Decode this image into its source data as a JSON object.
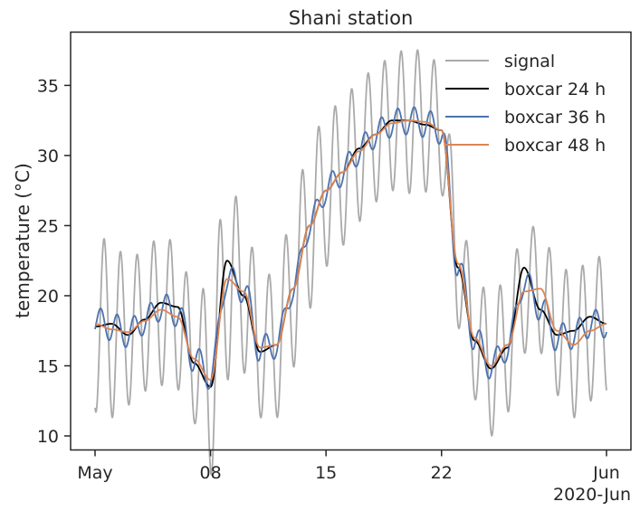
{
  "chart_data": {
    "type": "line",
    "title": "Shani station",
    "xlabel": "",
    "ylabel": "temperature (°C)",
    "x_range": [
      "2020-05-01",
      "2020-06-01"
    ],
    "ylim": [
      9.0,
      38.8
    ],
    "x_ticks": [
      {
        "date": "2020-05-01",
        "label": "May"
      },
      {
        "date": "2020-05-08",
        "label": "08"
      },
      {
        "date": "2020-05-15",
        "label": "15"
      },
      {
        "date": "2020-05-22",
        "label": "22"
      },
      {
        "date": "2020-06-01",
        "label": "Jun"
      }
    ],
    "x_offset_label": "2020-Jun",
    "y_ticks": [
      10,
      15,
      20,
      25,
      30,
      35
    ],
    "legend_position": "top-right",
    "grid": false,
    "x_dates": [
      "2020-05-01",
      "2020-05-02",
      "2020-05-03",
      "2020-05-04",
      "2020-05-05",
      "2020-05-06",
      "2020-05-07",
      "2020-05-08",
      "2020-05-09",
      "2020-05-10",
      "2020-05-11",
      "2020-05-12",
      "2020-05-13",
      "2020-05-14",
      "2020-05-15",
      "2020-05-16",
      "2020-05-17",
      "2020-05-18",
      "2020-05-19",
      "2020-05-20",
      "2020-05-21",
      "2020-05-22",
      "2020-05-23",
      "2020-05-24",
      "2020-05-25",
      "2020-05-26",
      "2020-05-27",
      "2020-05-28",
      "2020-05-29",
      "2020-05-30",
      "2020-05-31",
      "2020-06-01"
    ],
    "series": [
      {
        "name": "signal",
        "color": "#aaaaaa",
        "amplitude": [
          6.3,
          6.3,
          5.2,
          5.0,
          5.4,
          5.2,
          4.6,
          6.8,
          7.2,
          5.8,
          5.0,
          5.2,
          5.6,
          5.9,
          5.4,
          5.2,
          5.0,
          4.8,
          4.8,
          5.2,
          5.0,
          4.6,
          4.6,
          4.4,
          5.0,
          4.8,
          4.4,
          4.6,
          4.6,
          5.2,
          5.0,
          5.0
        ]
      },
      {
        "name": "boxcar 24 h",
        "color": "#000000",
        "values": [
          17.8,
          18.0,
          17.2,
          18.3,
          19.5,
          19.2,
          15.2,
          13.5,
          22.5,
          20.0,
          16.0,
          16.5,
          20.5,
          25.0,
          27.5,
          28.8,
          30.5,
          31.5,
          32.5,
          32.5,
          32.2,
          31.8,
          22.0,
          16.8,
          14.8,
          16.3,
          22.0,
          19.0,
          17.2,
          17.5,
          18.5,
          18.0
        ]
      },
      {
        "name": "boxcar 36 h",
        "color": "#4c72b0",
        "values": [
          18.2,
          17.8,
          17.3,
          18.2,
          19.2,
          18.8,
          15.5,
          14.3,
          21.2,
          20.5,
          16.2,
          16.5,
          20.5,
          25.0,
          27.5,
          28.8,
          30.3,
          31.5,
          32.3,
          32.5,
          32.3,
          31.8,
          22.2,
          17.0,
          15.0,
          16.3,
          21.0,
          19.2,
          17.0,
          17.2,
          18.0,
          18.0
        ]
      },
      {
        "name": "boxcar 48 h",
        "color": "#dd8452",
        "values": [
          18.0,
          17.6,
          17.4,
          18.2,
          19.0,
          18.5,
          15.5,
          14.0,
          21.2,
          20.3,
          16.3,
          16.5,
          20.5,
          25.0,
          27.5,
          28.8,
          30.3,
          31.5,
          32.3,
          32.5,
          32.4,
          31.8,
          22.3,
          17.0,
          15.0,
          16.5,
          20.3,
          20.5,
          17.5,
          16.5,
          17.5,
          18.0
        ]
      }
    ]
  }
}
